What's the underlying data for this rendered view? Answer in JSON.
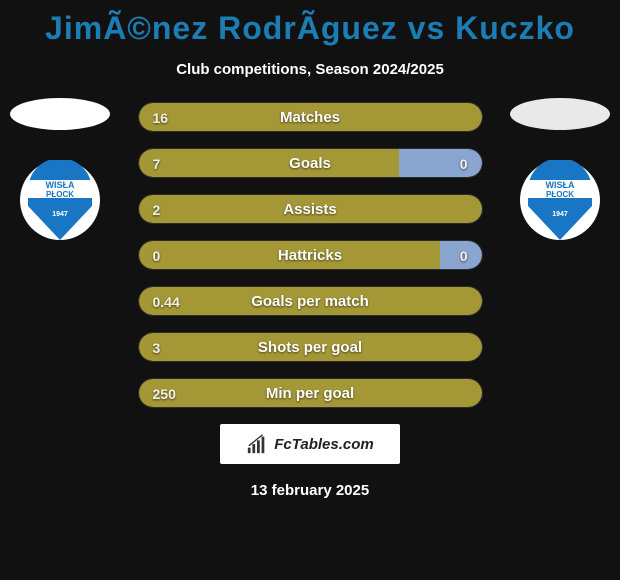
{
  "title": "JimÃ©nez RodrÃ­guez vs Kuczko",
  "subtitle": "Club competitions, Season 2024/2025",
  "date": "13 february 2025",
  "footer_text": "FcTables.com",
  "colors": {
    "left_fill": "#a49836",
    "right_fill": "#8aa5d0",
    "row_bg": "#1b1b1b",
    "title_color": "#1b7db3"
  },
  "club_logo": {
    "top_text": "WISŁA",
    "mid_text": "PŁOCK",
    "bottom_text": "1947",
    "blue": "#1976c4",
    "white": "#ffffff"
  },
  "rows": [
    {
      "label": "Matches",
      "left_val": "16",
      "right_val": "",
      "left_pct": 100,
      "right_pct": 0,
      "show_right_val": false
    },
    {
      "label": "Goals",
      "left_val": "7",
      "right_val": "0",
      "left_pct": 76,
      "right_pct": 24,
      "show_right_val": true
    },
    {
      "label": "Assists",
      "left_val": "2",
      "right_val": "",
      "left_pct": 100,
      "right_pct": 0,
      "show_right_val": false
    },
    {
      "label": "Hattricks",
      "left_val": "0",
      "right_val": "0",
      "left_pct": 88,
      "right_pct": 12,
      "show_right_val": true
    },
    {
      "label": "Goals per match",
      "left_val": "0.44",
      "right_val": "",
      "left_pct": 100,
      "right_pct": 0,
      "show_right_val": false
    },
    {
      "label": "Shots per goal",
      "left_val": "3",
      "right_val": "",
      "left_pct": 100,
      "right_pct": 0,
      "show_right_val": false
    },
    {
      "label": "Min per goal",
      "left_val": "250",
      "right_val": "",
      "left_pct": 100,
      "right_pct": 0,
      "show_right_val": false
    }
  ]
}
